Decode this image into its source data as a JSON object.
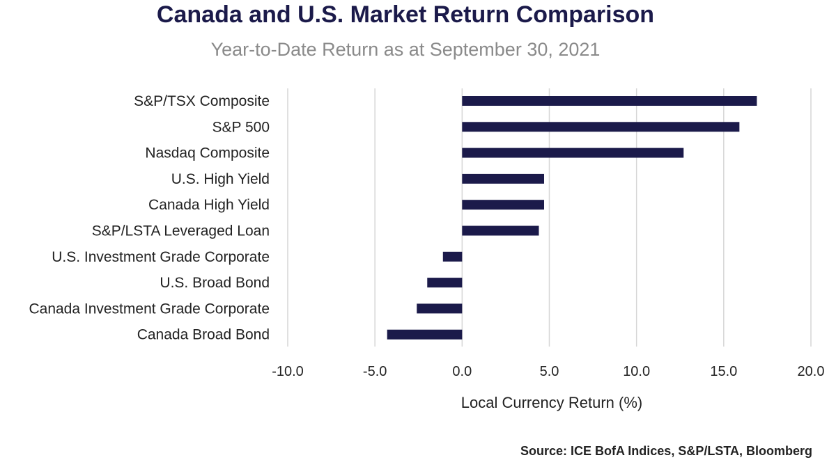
{
  "colors": {
    "title": "#1b1a4a",
    "subtitle": "#8a8a8a",
    "bar": "#1b1a4a",
    "grid": "#d6d6d6",
    "text": "#222222"
  },
  "source": "Source: ICE BofA Indices, S&P/LSTA, Bloomberg",
  "chart_data": {
    "type": "bar",
    "orientation": "horizontal",
    "title": "Canada and U.S. Market Return Comparison",
    "subtitle": "Year-to-Date Return as at September 30, 2021",
    "xlabel": "Local Currency Return (%)",
    "ylabel": "",
    "xlim": [
      -10,
      20
    ],
    "xticks": [
      -10,
      -5,
      0,
      5,
      10,
      15,
      20
    ],
    "xtick_labels": [
      "-10.0",
      "-5.0",
      "0.0",
      "5.0",
      "10.0",
      "15.0",
      "20.0"
    ],
    "grid": true,
    "legend": "none",
    "categories": [
      "S&P/TSX Composite",
      "S&P 500",
      "Nasdaq Composite",
      "U.S. High Yield",
      "Canada High Yield",
      "S&P/LSTA Leveraged Loan",
      "U.S. Investment Grade Corporate",
      "U.S. Broad Bond",
      "Canada Investment Grade Corporate",
      "Canada Broad Bond"
    ],
    "values": [
      16.9,
      15.9,
      12.7,
      4.7,
      4.7,
      4.4,
      -1.1,
      -2.0,
      -2.6,
      -4.3
    ]
  }
}
